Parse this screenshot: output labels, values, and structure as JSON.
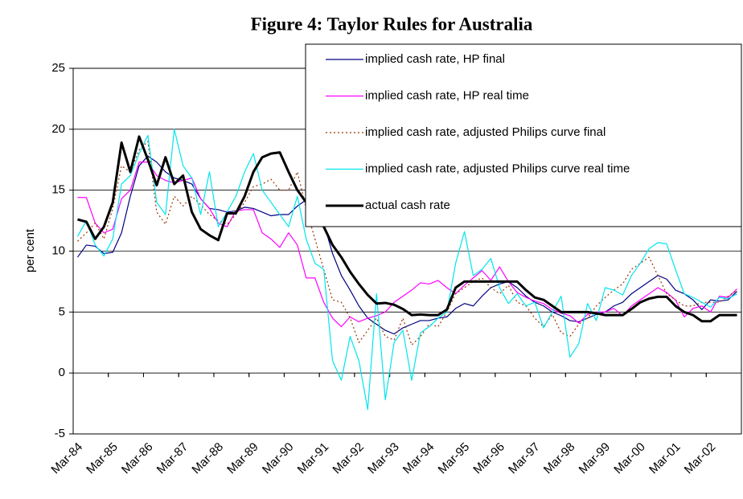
{
  "chart_data": {
    "type": "line",
    "title": "Figure 4:  Taylor Rules for Australia",
    "y_label": "per cent",
    "categories": [
      "Mar-84",
      null,
      null,
      null,
      "Mar-85",
      null,
      null,
      null,
      "Mar-86",
      null,
      null,
      null,
      "Mar-87",
      null,
      null,
      null,
      "Mar-88",
      null,
      null,
      null,
      "Mar-89",
      null,
      null,
      null,
      "Mar-90",
      null,
      null,
      null,
      "Mar-91",
      null,
      null,
      null,
      "Mar-92",
      null,
      null,
      null,
      "Mar-93",
      null,
      null,
      null,
      "Mar-94",
      null,
      null,
      null,
      "Mar-95",
      null,
      null,
      null,
      "Mar-96",
      null,
      null,
      null,
      "Mar-97",
      null,
      null,
      null,
      "Mar-98",
      null,
      null,
      null,
      "Mar-99",
      null,
      null,
      null,
      "Mar-00",
      null,
      null,
      null,
      "Mar-01",
      null,
      null,
      null,
      "Mar-02",
      null,
      null,
      null
    ],
    "ylim": [
      -5,
      25
    ],
    "yticks": [
      -5,
      0,
      5,
      10,
      15,
      20,
      25
    ],
    "grid": true,
    "legend": "upper right",
    "series": [
      {
        "name": "implied cash rate, HP final",
        "color": "#000080",
        "values": [
          9.5,
          10.5,
          10.4,
          9.8,
          9.9,
          11.5,
          14.5,
          17.0,
          17.8,
          17.3,
          16.5,
          16.0,
          15.8,
          15.5,
          14.3,
          13.5,
          13.4,
          13.2,
          13.3,
          13.6,
          13.5,
          13.2,
          12.9,
          13.0,
          13.0,
          13.7,
          14.2,
          13.5,
          12.3,
          9.8,
          8.0,
          6.8,
          5.5,
          4.5,
          4.0,
          3.5,
          3.2,
          3.7,
          4.0,
          4.3,
          4.3,
          4.5,
          4.6,
          5.3,
          5.7,
          5.5,
          6.3,
          7.0,
          7.3,
          7.5,
          7.0,
          6.3,
          5.8,
          5.5,
          5.0,
          4.7,
          4.3,
          4.2,
          4.5,
          4.8,
          5.0,
          5.5,
          5.8,
          6.5,
          7.0,
          7.5,
          8.0,
          7.7,
          6.8,
          6.5,
          6.0,
          5.2,
          6.0,
          5.9,
          6.0,
          6.7
        ]
      },
      {
        "name": "implied cash rate, HP real time",
        "color": "#ff00ff",
        "values": [
          14.4,
          14.4,
          12.3,
          11.5,
          11.8,
          14.3,
          15.0,
          17.3,
          17.3,
          16.2,
          15.8,
          15.6,
          15.8,
          16.0,
          14.3,
          13.5,
          12.3,
          12.0,
          13.3,
          13.4,
          13.4,
          11.5,
          11.0,
          10.3,
          11.5,
          10.5,
          7.8,
          7.8,
          5.8,
          4.5,
          3.8,
          4.6,
          4.2,
          4.5,
          4.7,
          5.0,
          5.8,
          6.3,
          6.8,
          7.4,
          7.3,
          7.6,
          7.0,
          6.5,
          7.2,
          7.8,
          8.4,
          7.6,
          8.7,
          7.5,
          6.6,
          6.2,
          5.9,
          5.7,
          5.2,
          4.9,
          4.7,
          4.1,
          4.8,
          5.0,
          5.0,
          5.3,
          4.7,
          5.5,
          6.0,
          6.5,
          7.0,
          6.6,
          6.0,
          4.6,
          5.3,
          5.5,
          5.0,
          6.3,
          6.2,
          6.9
        ]
      },
      {
        "name": "implied cash rate, adjusted Philips curve final",
        "color": "#993300",
        "line_style": "dotted",
        "values": [
          10.8,
          11.5,
          12.3,
          11.0,
          13.5,
          17.0,
          16.5,
          18.3,
          19.0,
          13.2,
          12.2,
          14.5,
          13.7,
          14.5,
          13.8,
          13.0,
          12.5,
          12.2,
          13.0,
          14.0,
          15.3,
          15.5,
          15.9,
          15.0,
          15.0,
          16.5,
          13.5,
          11.0,
          8.5,
          6.0,
          5.8,
          4.5,
          2.5,
          3.5,
          4.5,
          3.0,
          2.7,
          4.5,
          2.3,
          3.0,
          4.0,
          3.8,
          5.0,
          6.5,
          7.0,
          7.5,
          7.8,
          7.0,
          6.5,
          7.2,
          5.8,
          5.5,
          4.5,
          3.8,
          4.8,
          3.3,
          3.0,
          4.0,
          4.5,
          5.5,
          6.2,
          6.8,
          7.3,
          8.5,
          9.0,
          9.5,
          8.0,
          6.5,
          6.0,
          5.5,
          5.5,
          5.8,
          5.8,
          5.8,
          6.3,
          6.8
        ]
      },
      {
        "name": "implied cash rate, adjusted Philips curve real time",
        "color": "#00e5ee",
        "values": [
          11.2,
          12.5,
          10.5,
          9.6,
          11.0,
          15.5,
          16.2,
          18.0,
          19.5,
          14.0,
          13.0,
          20.0,
          17.0,
          16.0,
          13.0,
          16.5,
          12.0,
          13.2,
          14.5,
          16.5,
          18.0,
          15.0,
          14.0,
          13.0,
          12.0,
          14.5,
          11.0,
          9.0,
          8.5,
          1.0,
          -0.6,
          3.0,
          1.0,
          -3.0,
          6.5,
          -2.2,
          2.5,
          3.5,
          -0.6,
          3.3,
          3.8,
          4.5,
          5.0,
          9.0,
          11.6,
          8.0,
          8.5,
          9.4,
          7.0,
          5.7,
          6.5,
          5.5,
          5.8,
          3.7,
          5.0,
          6.3,
          1.3,
          2.4,
          5.7,
          4.3,
          7.0,
          6.8,
          6.4,
          8.0,
          9.0,
          10.2,
          10.7,
          10.6,
          8.5,
          6.5,
          6.2,
          5.8,
          5.4,
          6.2,
          6.1,
          6.5
        ]
      },
      {
        "name": "actual cash rate",
        "color": "#000000",
        "line_width": 3,
        "values": [
          12.6,
          12.4,
          11.0,
          12.0,
          14.0,
          18.9,
          16.5,
          19.4,
          17.5,
          15.4,
          17.7,
          15.5,
          16.2,
          13.2,
          11.8,
          11.3,
          10.9,
          13.1,
          13.1,
          14.5,
          16.5,
          17.7,
          18.0,
          18.1,
          16.5,
          15.0,
          14.0,
          12.6,
          12.0,
          10.5,
          9.5,
          8.3,
          7.3,
          6.4,
          5.7,
          5.75,
          5.6,
          5.25,
          4.75,
          4.8,
          4.75,
          4.75,
          5.2,
          7.0,
          7.5,
          7.5,
          7.5,
          7.5,
          7.5,
          7.5,
          7.5,
          6.8,
          6.2,
          6.0,
          5.5,
          5.0,
          5.0,
          5.0,
          5.0,
          4.9,
          4.75,
          4.75,
          4.75,
          5.25,
          5.8,
          6.1,
          6.25,
          6.25,
          5.5,
          5.0,
          4.75,
          4.25,
          4.25,
          4.75,
          4.75,
          4.75
        ]
      }
    ]
  }
}
